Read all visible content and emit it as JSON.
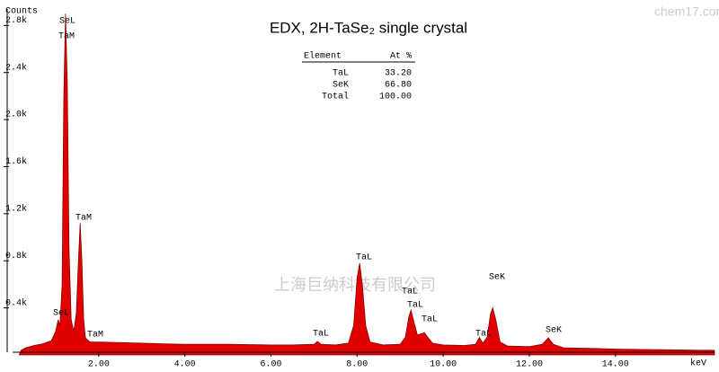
{
  "chart_data": {
    "type": "area",
    "title": "EDX, 2H-TaSe₂ single crystal",
    "y_label": "Counts",
    "x_label": "keV",
    "color": "#e00000",
    "xlim": [
      0,
      16.3
    ],
    "ylim": [
      0,
      2940
    ],
    "xticks": [
      {
        "value": 2,
        "label": "2.00"
      },
      {
        "value": 4,
        "label": "4.00"
      },
      {
        "value": 6,
        "label": "6.00"
      },
      {
        "value": 8,
        "label": "8.00"
      },
      {
        "value": 10,
        "label": "10.00"
      },
      {
        "value": 12,
        "label": "12.00"
      },
      {
        "value": 14,
        "label": "14.00"
      }
    ],
    "yticks": [
      {
        "value": 400,
        "label": "0.4k"
      },
      {
        "value": 800,
        "label": "0.8k"
      },
      {
        "value": 1200,
        "label": "1.2k"
      },
      {
        "value": 1600,
        "label": "1.6k"
      },
      {
        "value": 2000,
        "label": "2.0k"
      },
      {
        "value": 2400,
        "label": "2.4k"
      },
      {
        "value": 2800,
        "label": "2.8k"
      }
    ],
    "x": [
      0.15,
      0.2,
      0.3,
      0.5,
      0.7,
      0.9,
      1.0,
      1.06,
      1.1,
      1.15,
      1.19,
      1.23,
      1.27,
      1.31,
      1.36,
      1.42,
      1.48,
      1.53,
      1.57,
      1.61,
      1.65,
      1.69,
      1.73,
      1.8,
      2.0,
      2.5,
      3.0,
      3.5,
      4.0,
      5.0,
      6.0,
      6.5,
      7.0,
      7.08,
      7.16,
      7.5,
      7.8,
      7.92,
      8.0,
      8.06,
      8.12,
      8.2,
      8.3,
      8.6,
      9.0,
      9.12,
      9.2,
      9.25,
      9.32,
      9.4,
      9.5,
      9.56,
      9.62,
      9.75,
      10.0,
      10.5,
      10.75,
      10.84,
      10.92,
      11.02,
      11.1,
      11.15,
      11.22,
      11.32,
      11.5,
      12.0,
      12.3,
      12.44,
      12.56,
      12.8,
      13.5,
      14.0,
      15.0,
      16.0,
      16.3
    ],
    "values": [
      0,
      40,
      60,
      80,
      95,
      120,
      200,
      300,
      250,
      600,
      2200,
      2900,
      2300,
      900,
      300,
      200,
      350,
      800,
      1120,
      800,
      300,
      150,
      130,
      110,
      110,
      105,
      100,
      95,
      90,
      90,
      85,
      85,
      90,
      115,
      90,
      85,
      100,
      250,
      650,
      780,
      600,
      250,
      110,
      85,
      90,
      150,
      320,
      380,
      280,
      170,
      180,
      190,
      160,
      100,
      85,
      80,
      90,
      150,
      100,
      150,
      350,
      400,
      300,
      110,
      75,
      70,
      90,
      145,
      90,
      60,
      55,
      50,
      45,
      40,
      40
    ],
    "annotations": [
      "SeL",
      "TaM",
      "TaM",
      "SeL",
      "TaM",
      "TaL",
      "TaL",
      "TaL",
      "TaL",
      "TaL",
      "TaL",
      "SeK",
      "SeK"
    ],
    "table": {
      "header": [
        "Element",
        "At %"
      ],
      "rows": [
        [
          "TaL",
          "33.20"
        ],
        [
          "SeK",
          "66.80"
        ],
        [
          "Total",
          "100.00"
        ]
      ]
    },
    "watermarks": [
      "chem17.com",
      "上海巨纳科技有限公司"
    ]
  }
}
